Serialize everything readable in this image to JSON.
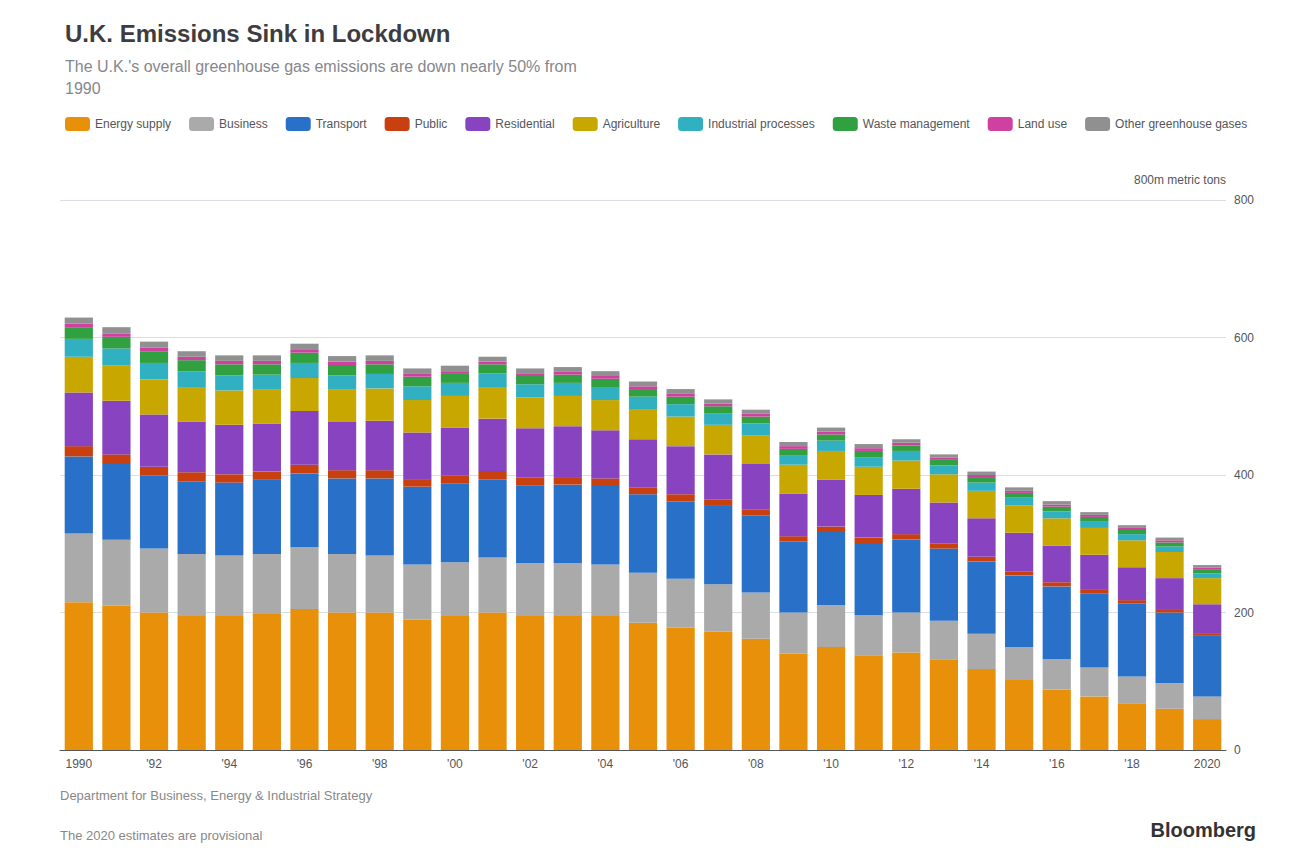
{
  "chart_data": {
    "type": "bar",
    "title": "U.K. Emissions Sink in Lockdown",
    "subtitle": "The U.K.'s overall greenhouse gas emissions are down nearly 50% from\n1990",
    "ylabel": "800m metric tons",
    "source": [
      "Department for Business, Energy & Industrial Strategy",
      "The 2020 estimates are provisional"
    ],
    "credit": "Bloomberg",
    "categories": [
      "1990",
      null,
      "'92",
      null,
      "'94",
      null,
      "'96",
      null,
      "'98",
      null,
      "'00",
      null,
      "'02",
      null,
      "'04",
      null,
      "'06",
      null,
      "'08",
      null,
      "'10",
      null,
      "'12",
      null,
      "'14",
      null,
      "'16",
      null,
      "'18",
      null,
      "2020"
    ],
    "stacked": true,
    "grid": true,
    "legend": "top-left",
    "ylim": [
      0,
      800
    ],
    "yticks": [
      0,
      200,
      400,
      600,
      800
    ],
    "series": [
      {
        "name": "Energy supply",
        "color": "#E8900A",
        "values": [
          215,
          210,
          200,
          195,
          195,
          198,
          205,
          200,
          200,
          190,
          195,
          200,
          195,
          195,
          195,
          185,
          178,
          172,
          162,
          140,
          150,
          138,
          142,
          132,
          118,
          102,
          88,
          78,
          68,
          60,
          45
        ]
      },
      {
        "name": "Business",
        "color": "#AAAAAA",
        "values": [
          100,
          96,
          93,
          90,
          88,
          87,
          90,
          85,
          83,
          80,
          78,
          80,
          77,
          77,
          75,
          73,
          71,
          69,
          67,
          60,
          61,
          58,
          58,
          56,
          51,
          48,
          44,
          42,
          39,
          37,
          33
        ]
      },
      {
        "name": "Transport",
        "color": "#2870C8",
        "values": [
          112,
          110,
          106,
          106,
          106,
          108,
          107,
          110,
          112,
          113,
          115,
          114,
          113,
          114,
          114,
          114,
          113,
          114,
          112,
          103,
          106,
          105,
          106,
          105,
          105,
          104,
          106,
          108,
          106,
          103,
          88
        ]
      },
      {
        "name": "Public",
        "color": "#C84010",
        "values": [
          15,
          14,
          13,
          13,
          12,
          12,
          13,
          12,
          12,
          11,
          11,
          12,
          11,
          11,
          11,
          10,
          10,
          9,
          9,
          8,
          8,
          8,
          8,
          7,
          7,
          6,
          6,
          6,
          5,
          5,
          4
        ]
      },
      {
        "name": "Residential",
        "color": "#8844C0",
        "values": [
          78,
          78,
          76,
          74,
          72,
          70,
          78,
          70,
          72,
          68,
          70,
          76,
          72,
          74,
          70,
          70,
          70,
          66,
          66,
          62,
          68,
          62,
          66,
          60,
          56,
          56,
          53,
          50,
          48,
          45,
          42
        ]
      },
      {
        "name": "Agriculture",
        "color": "#C8A800",
        "values": [
          52,
          51,
          51,
          50,
          50,
          49,
          48,
          47,
          47,
          47,
          46,
          46,
          45,
          44,
          44,
          44,
          43,
          43,
          42,
          42,
          42,
          41,
          41,
          41,
          40,
          40,
          40,
          39,
          39,
          38,
          38
        ]
      },
      {
        "name": "Industrial processes",
        "color": "#30B0C0",
        "values": [
          26,
          25,
          24,
          23,
          22,
          22,
          22,
          21,
          21,
          20,
          19,
          20,
          19,
          19,
          19,
          18,
          18,
          17,
          17,
          14,
          15,
          14,
          14,
          13,
          12,
          11,
          10,
          9,
          9,
          8,
          7
        ]
      },
      {
        "name": "Waste management",
        "color": "#30A040",
        "values": [
          17,
          17,
          17,
          16,
          16,
          15,
          15,
          15,
          14,
          14,
          13,
          13,
          12,
          12,
          12,
          11,
          11,
          10,
          10,
          9,
          9,
          9,
          8,
          8,
          8,
          7,
          7,
          7,
          6,
          6,
          5
        ]
      },
      {
        "name": "Land use",
        "color": "#D040A0",
        "values": [
          5,
          5,
          5,
          5,
          5,
          5,
          5,
          5,
          5,
          4,
          4,
          4,
          4,
          4,
          4,
          4,
          4,
          4,
          4,
          4,
          4,
          4,
          4,
          3,
          3,
          3,
          3,
          3,
          3,
          3,
          3
        ]
      },
      {
        "name": "Other greenhouse gases",
        "color": "#909090",
        "values": [
          9,
          9,
          9,
          8,
          8,
          8,
          8,
          8,
          8,
          8,
          8,
          7,
          7,
          7,
          7,
          7,
          7,
          6,
          6,
          6,
          6,
          6,
          5,
          5,
          5,
          5,
          5,
          4,
          4,
          4,
          4
        ]
      }
    ]
  }
}
